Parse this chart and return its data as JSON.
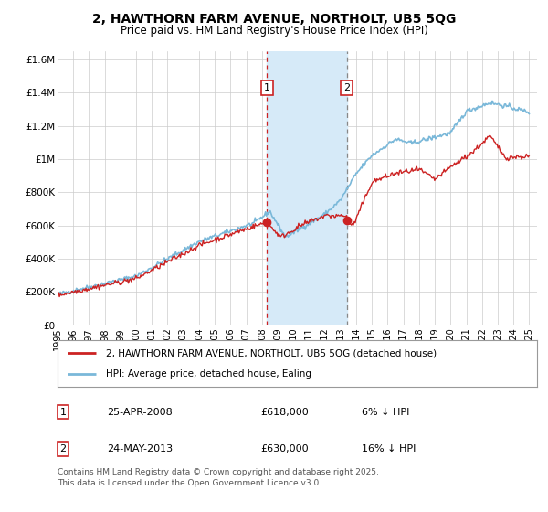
{
  "title": "2, HAWTHORN FARM AVENUE, NORTHOLT, UB5 5QG",
  "subtitle": "Price paid vs. HM Land Registry's House Price Index (HPI)",
  "title_fontsize": 10,
  "subtitle_fontsize": 8.5,
  "ylim": [
    0,
    1650000
  ],
  "xlim_start": 1995.0,
  "xlim_end": 2025.5,
  "yticks": [
    0,
    200000,
    400000,
    600000,
    800000,
    1000000,
    1200000,
    1400000,
    1600000
  ],
  "ytick_labels": [
    "£0",
    "£200K",
    "£400K",
    "£600K",
    "£800K",
    "£1M",
    "£1.2M",
    "£1.4M",
    "£1.6M"
  ],
  "xticks": [
    1995,
    1996,
    1997,
    1998,
    1999,
    2000,
    2001,
    2002,
    2003,
    2004,
    2005,
    2006,
    2007,
    2008,
    2009,
    2010,
    2011,
    2012,
    2013,
    2014,
    2015,
    2016,
    2017,
    2018,
    2019,
    2020,
    2021,
    2022,
    2023,
    2024,
    2025
  ],
  "hpi_color": "#7ab8d9",
  "price_color": "#cc2222",
  "sale1_x": 2008.32,
  "sale1_y": 618000,
  "sale1_label": "1",
  "sale1_date": "25-APR-2008",
  "sale1_price": "£618,000",
  "sale1_hpi": "6% ↓ HPI",
  "sale2_x": 2013.4,
  "sale2_y": 630000,
  "sale2_label": "2",
  "sale2_date": "24-MAY-2013",
  "sale2_price": "£630,000",
  "sale2_hpi": "16% ↓ HPI",
  "shade_start": 2008.32,
  "shade_end": 2013.4,
  "shade_color": "#d6eaf8",
  "legend_label_price": "2, HAWTHORN FARM AVENUE, NORTHOLT, UB5 5QG (detached house)",
  "legend_label_hpi": "HPI: Average price, detached house, Ealing",
  "footer": "Contains HM Land Registry data © Crown copyright and database right 2025.\nThis data is licensed under the Open Government Licence v3.0.",
  "background_color": "#ffffff",
  "grid_color": "#cccccc"
}
